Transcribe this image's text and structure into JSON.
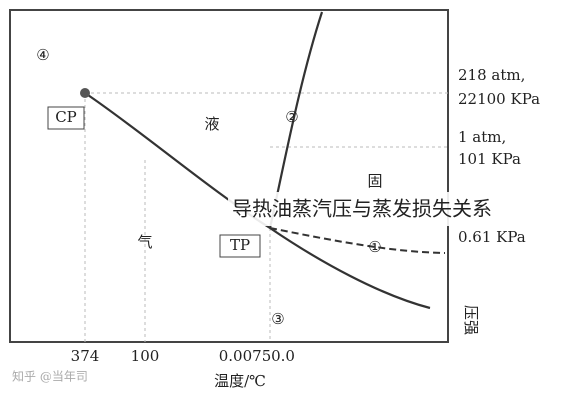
{
  "diagram": {
    "regions": {
      "region_4": "④",
      "liquid": "液",
      "solid": "固",
      "gas": "气"
    },
    "points": {
      "critical": "CP",
      "triple": "TP"
    },
    "curves": {
      "curve_1": "①",
      "curve_2": "②",
      "curve_3": "③"
    },
    "pressure_labels": [
      [
        "218 atm,",
        "22100 KPa"
      ],
      [
        "1 atm,",
        "101 KPa"
      ],
      [
        "0.61 KPa"
      ]
    ],
    "y_axis_label": "压强",
    "x_labels": [
      "374",
      "100",
      "0.0075",
      "0.0"
    ],
    "x_axis_label": "温度/℃",
    "watermark": "知乎 @当年司"
  },
  "caption": "导热油蒸汽压与蒸发损失关系"
}
